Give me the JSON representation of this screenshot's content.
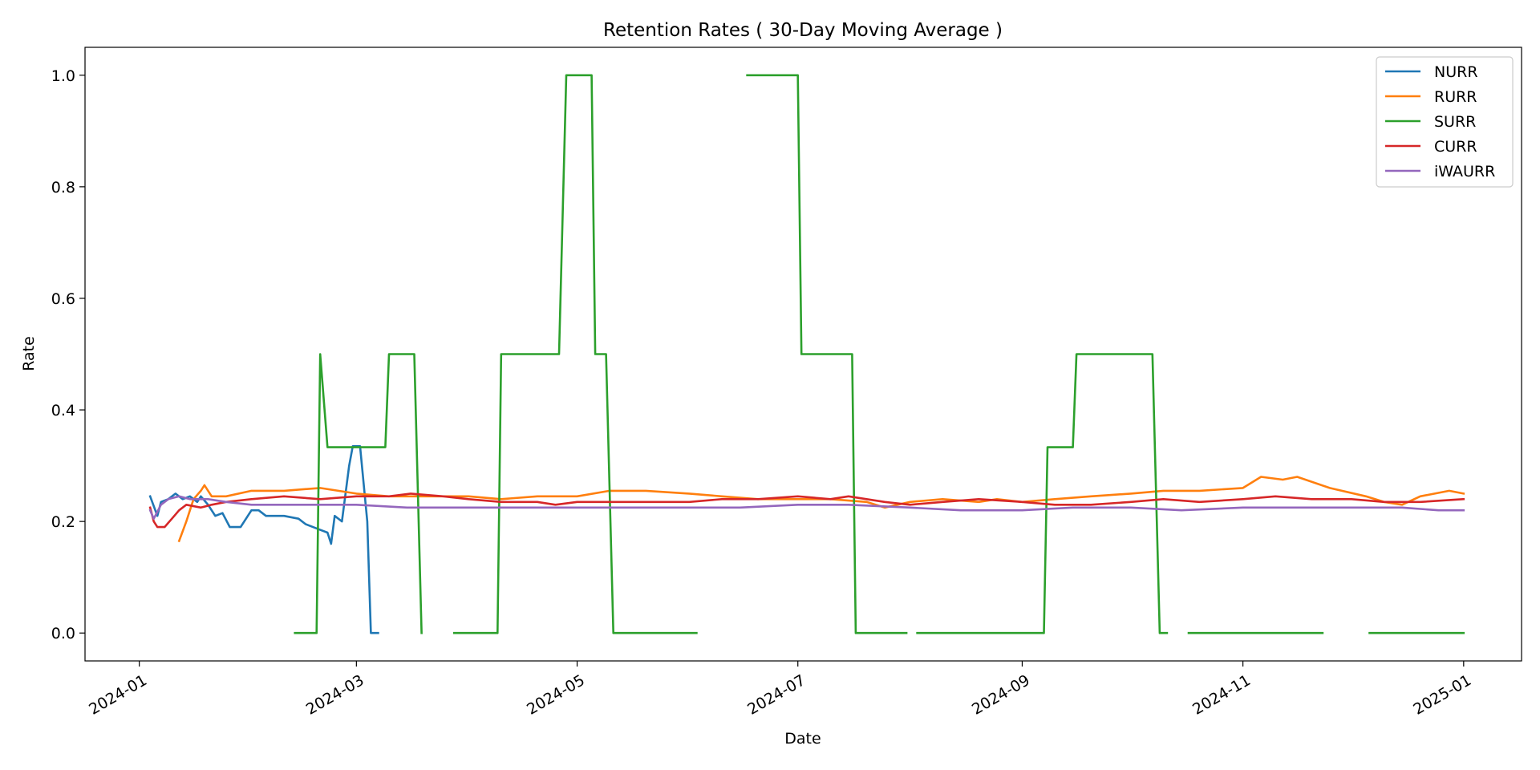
{
  "chart_data": {
    "type": "line",
    "title": "Retention Rates ( 30-Day Moving Average )",
    "xlabel": "Date",
    "ylabel": "Rate",
    "xlim": [
      "2023-12-17",
      "2025-01-17"
    ],
    "ylim": [
      -0.05,
      1.05
    ],
    "x_ticks": [
      "2024-01",
      "2024-03",
      "2024-05",
      "2024-07",
      "2024-09",
      "2024-11",
      "2025-01"
    ],
    "y_ticks": [
      "0.0",
      "0.2",
      "0.4",
      "0.6",
      "0.8",
      "1.0"
    ],
    "grid": false,
    "legend_position": "top-right",
    "series": [
      {
        "name": "NURR",
        "color": "#1f77b4",
        "points": [
          [
            "2024-01-04",
            0.245
          ],
          [
            "2024-01-06",
            0.21
          ],
          [
            "2024-01-07",
            0.235
          ],
          [
            "2024-01-09",
            0.24
          ],
          [
            "2024-01-11",
            0.25
          ],
          [
            "2024-01-13",
            0.24
          ],
          [
            "2024-01-15",
            0.245
          ],
          [
            "2024-01-17",
            0.235
          ],
          [
            "2024-01-18",
            0.245
          ],
          [
            "2024-01-20",
            0.23
          ],
          [
            "2024-01-22",
            0.21
          ],
          [
            "2024-01-24",
            0.215
          ],
          [
            "2024-01-26",
            0.19
          ],
          [
            "2024-01-29",
            0.19
          ],
          [
            "2024-02-01",
            0.22
          ],
          [
            "2024-02-03",
            0.22
          ],
          [
            "2024-02-05",
            0.21
          ],
          [
            "2024-02-10",
            0.21
          ],
          [
            "2024-02-14",
            0.205
          ],
          [
            "2024-02-16",
            0.195
          ],
          [
            "2024-02-18",
            0.19
          ],
          [
            "2024-02-20",
            0.185
          ],
          [
            "2024-02-22",
            0.18
          ],
          [
            "2024-02-23",
            0.16
          ],
          [
            "2024-02-24",
            0.21
          ],
          [
            "2024-02-26",
            0.2
          ],
          [
            "2024-02-28",
            0.3
          ],
          [
            "2024-02-29",
            0.335
          ],
          [
            "2024-03-02",
            0.335
          ],
          [
            "2024-03-04",
            0.2
          ],
          [
            "2024-03-05",
            0.0
          ],
          [
            "2024-03-07",
            0.0
          ]
        ]
      },
      {
        "name": "RURR",
        "color": "#ff7f0e",
        "points": [
          [
            "2024-01-12",
            0.165
          ],
          [
            "2024-01-14",
            0.2
          ],
          [
            "2024-01-16",
            0.24
          ],
          [
            "2024-01-18",
            0.255
          ],
          [
            "2024-01-19",
            0.265
          ],
          [
            "2024-01-21",
            0.245
          ],
          [
            "2024-01-25",
            0.245
          ],
          [
            "2024-02-01",
            0.255
          ],
          [
            "2024-02-10",
            0.255
          ],
          [
            "2024-02-20",
            0.26
          ],
          [
            "2024-03-01",
            0.25
          ],
          [
            "2024-03-10",
            0.245
          ],
          [
            "2024-03-20",
            0.245
          ],
          [
            "2024-04-01",
            0.245
          ],
          [
            "2024-04-10",
            0.24
          ],
          [
            "2024-04-20",
            0.245
          ],
          [
            "2024-05-01",
            0.245
          ],
          [
            "2024-05-10",
            0.255
          ],
          [
            "2024-05-20",
            0.255
          ],
          [
            "2024-06-01",
            0.25
          ],
          [
            "2024-06-10",
            0.245
          ],
          [
            "2024-06-20",
            0.24
          ],
          [
            "2024-07-01",
            0.24
          ],
          [
            "2024-07-10",
            0.24
          ],
          [
            "2024-07-20",
            0.235
          ],
          [
            "2024-07-25",
            0.225
          ],
          [
            "2024-08-01",
            0.235
          ],
          [
            "2024-08-10",
            0.24
          ],
          [
            "2024-08-20",
            0.235
          ],
          [
            "2024-08-25",
            0.24
          ],
          [
            "2024-09-01",
            0.235
          ],
          [
            "2024-09-10",
            0.24
          ],
          [
            "2024-09-20",
            0.245
          ],
          [
            "2024-10-01",
            0.25
          ],
          [
            "2024-10-10",
            0.255
          ],
          [
            "2024-10-20",
            0.255
          ],
          [
            "2024-11-01",
            0.26
          ],
          [
            "2024-11-06",
            0.28
          ],
          [
            "2024-11-12",
            0.275
          ],
          [
            "2024-11-16",
            0.28
          ],
          [
            "2024-11-25",
            0.26
          ],
          [
            "2024-12-05",
            0.245
          ],
          [
            "2024-12-10",
            0.235
          ],
          [
            "2024-12-15",
            0.23
          ],
          [
            "2024-12-20",
            0.245
          ],
          [
            "2024-12-28",
            0.255
          ],
          [
            "2025-01-01",
            0.25
          ]
        ]
      },
      {
        "name": "SURR",
        "color": "#2ca02c",
        "segments": [
          [
            [
              "2024-02-13",
              0.0
            ],
            [
              "2024-02-19",
              0.0
            ],
            [
              "2024-02-20",
              0.5
            ],
            [
              "2024-02-22",
              0.333
            ],
            [
              "2024-03-09",
              0.333
            ],
            [
              "2024-03-10",
              0.5
            ],
            [
              "2024-03-17",
              0.5
            ],
            [
              "2024-03-19",
              0.0
            ]
          ],
          [
            [
              "2024-03-28",
              0.0
            ],
            [
              "2024-04-09",
              0.0
            ],
            [
              "2024-04-10",
              0.5
            ],
            [
              "2024-04-26",
              0.5
            ],
            [
              "2024-04-28",
              1.0
            ],
            [
              "2024-05-05",
              1.0
            ],
            [
              "2024-05-06",
              0.5
            ],
            [
              "2024-05-09",
              0.5
            ],
            [
              "2024-05-11",
              0.0
            ],
            [
              "2024-06-03",
              0.0
            ]
          ],
          [
            [
              "2024-06-17",
              1.0
            ],
            [
              "2024-07-01",
              1.0
            ],
            [
              "2024-07-02",
              0.5
            ],
            [
              "2024-07-16",
              0.5
            ],
            [
              "2024-07-17",
              0.0
            ],
            [
              "2024-07-31",
              0.0
            ]
          ],
          [
            [
              "2024-08-03",
              0.0
            ],
            [
              "2024-09-07",
              0.0
            ],
            [
              "2024-09-08",
              0.333
            ],
            [
              "2024-09-15",
              0.333
            ],
            [
              "2024-09-16",
              0.5
            ],
            [
              "2024-10-07",
              0.5
            ],
            [
              "2024-10-09",
              0.0
            ],
            [
              "2024-10-11",
              0.0
            ]
          ],
          [
            [
              "2024-10-17",
              0.0
            ],
            [
              "2024-11-23",
              0.0
            ]
          ],
          [
            [
              "2024-12-06",
              0.0
            ],
            [
              "2025-01-01",
              0.0
            ]
          ]
        ]
      },
      {
        "name": "CURR",
        "color": "#d62728",
        "points": [
          [
            "2024-01-04",
            0.225
          ],
          [
            "2024-01-05",
            0.2
          ],
          [
            "2024-01-06",
            0.19
          ],
          [
            "2024-01-08",
            0.19
          ],
          [
            "2024-01-10",
            0.205
          ],
          [
            "2024-01-12",
            0.22
          ],
          [
            "2024-01-14",
            0.23
          ],
          [
            "2024-01-18",
            0.225
          ],
          [
            "2024-01-21",
            0.23
          ],
          [
            "2024-01-25",
            0.235
          ],
          [
            "2024-02-01",
            0.24
          ],
          [
            "2024-02-10",
            0.245
          ],
          [
            "2024-02-20",
            0.24
          ],
          [
            "2024-03-01",
            0.245
          ],
          [
            "2024-03-10",
            0.245
          ],
          [
            "2024-03-16",
            0.25
          ],
          [
            "2024-03-25",
            0.245
          ],
          [
            "2024-04-01",
            0.24
          ],
          [
            "2024-04-10",
            0.235
          ],
          [
            "2024-04-20",
            0.235
          ],
          [
            "2024-04-25",
            0.23
          ],
          [
            "2024-05-01",
            0.235
          ],
          [
            "2024-05-10",
            0.235
          ],
          [
            "2024-05-20",
            0.235
          ],
          [
            "2024-06-01",
            0.235
          ],
          [
            "2024-06-10",
            0.24
          ],
          [
            "2024-06-20",
            0.24
          ],
          [
            "2024-07-01",
            0.245
          ],
          [
            "2024-07-10",
            0.24
          ],
          [
            "2024-07-15",
            0.245
          ],
          [
            "2024-07-20",
            0.24
          ],
          [
            "2024-07-25",
            0.235
          ],
          [
            "2024-08-01",
            0.23
          ],
          [
            "2024-08-10",
            0.235
          ],
          [
            "2024-08-20",
            0.24
          ],
          [
            "2024-09-01",
            0.235
          ],
          [
            "2024-09-10",
            0.23
          ],
          [
            "2024-09-20",
            0.23
          ],
          [
            "2024-10-01",
            0.235
          ],
          [
            "2024-10-10",
            0.24
          ],
          [
            "2024-10-20",
            0.235
          ],
          [
            "2024-11-01",
            0.24
          ],
          [
            "2024-11-10",
            0.245
          ],
          [
            "2024-11-20",
            0.24
          ],
          [
            "2024-12-01",
            0.24
          ],
          [
            "2024-12-10",
            0.235
          ],
          [
            "2024-12-20",
            0.235
          ],
          [
            "2025-01-01",
            0.24
          ]
        ]
      },
      {
        "name": "iWAURR",
        "color": "#9467bd",
        "points": [
          [
            "2024-01-04",
            0.22
          ],
          [
            "2024-01-05",
            0.205
          ],
          [
            "2024-01-07",
            0.23
          ],
          [
            "2024-01-09",
            0.24
          ],
          [
            "2024-01-12",
            0.245
          ],
          [
            "2024-01-15",
            0.24
          ],
          [
            "2024-01-20",
            0.24
          ],
          [
            "2024-01-25",
            0.235
          ],
          [
            "2024-02-01",
            0.23
          ],
          [
            "2024-02-15",
            0.23
          ],
          [
            "2024-03-01",
            0.23
          ],
          [
            "2024-03-15",
            0.225
          ],
          [
            "2024-04-01",
            0.225
          ],
          [
            "2024-04-15",
            0.225
          ],
          [
            "2024-05-01",
            0.225
          ],
          [
            "2024-05-15",
            0.225
          ],
          [
            "2024-06-01",
            0.225
          ],
          [
            "2024-06-15",
            0.225
          ],
          [
            "2024-07-01",
            0.23
          ],
          [
            "2024-07-15",
            0.23
          ],
          [
            "2024-08-01",
            0.225
          ],
          [
            "2024-08-15",
            0.22
          ],
          [
            "2024-09-01",
            0.22
          ],
          [
            "2024-09-15",
            0.225
          ],
          [
            "2024-10-01",
            0.225
          ],
          [
            "2024-10-15",
            0.22
          ],
          [
            "2024-11-01",
            0.225
          ],
          [
            "2024-11-15",
            0.225
          ],
          [
            "2024-12-01",
            0.225
          ],
          [
            "2024-12-15",
            0.225
          ],
          [
            "2024-12-25",
            0.22
          ],
          [
            "2025-01-01",
            0.22
          ]
        ]
      }
    ]
  }
}
